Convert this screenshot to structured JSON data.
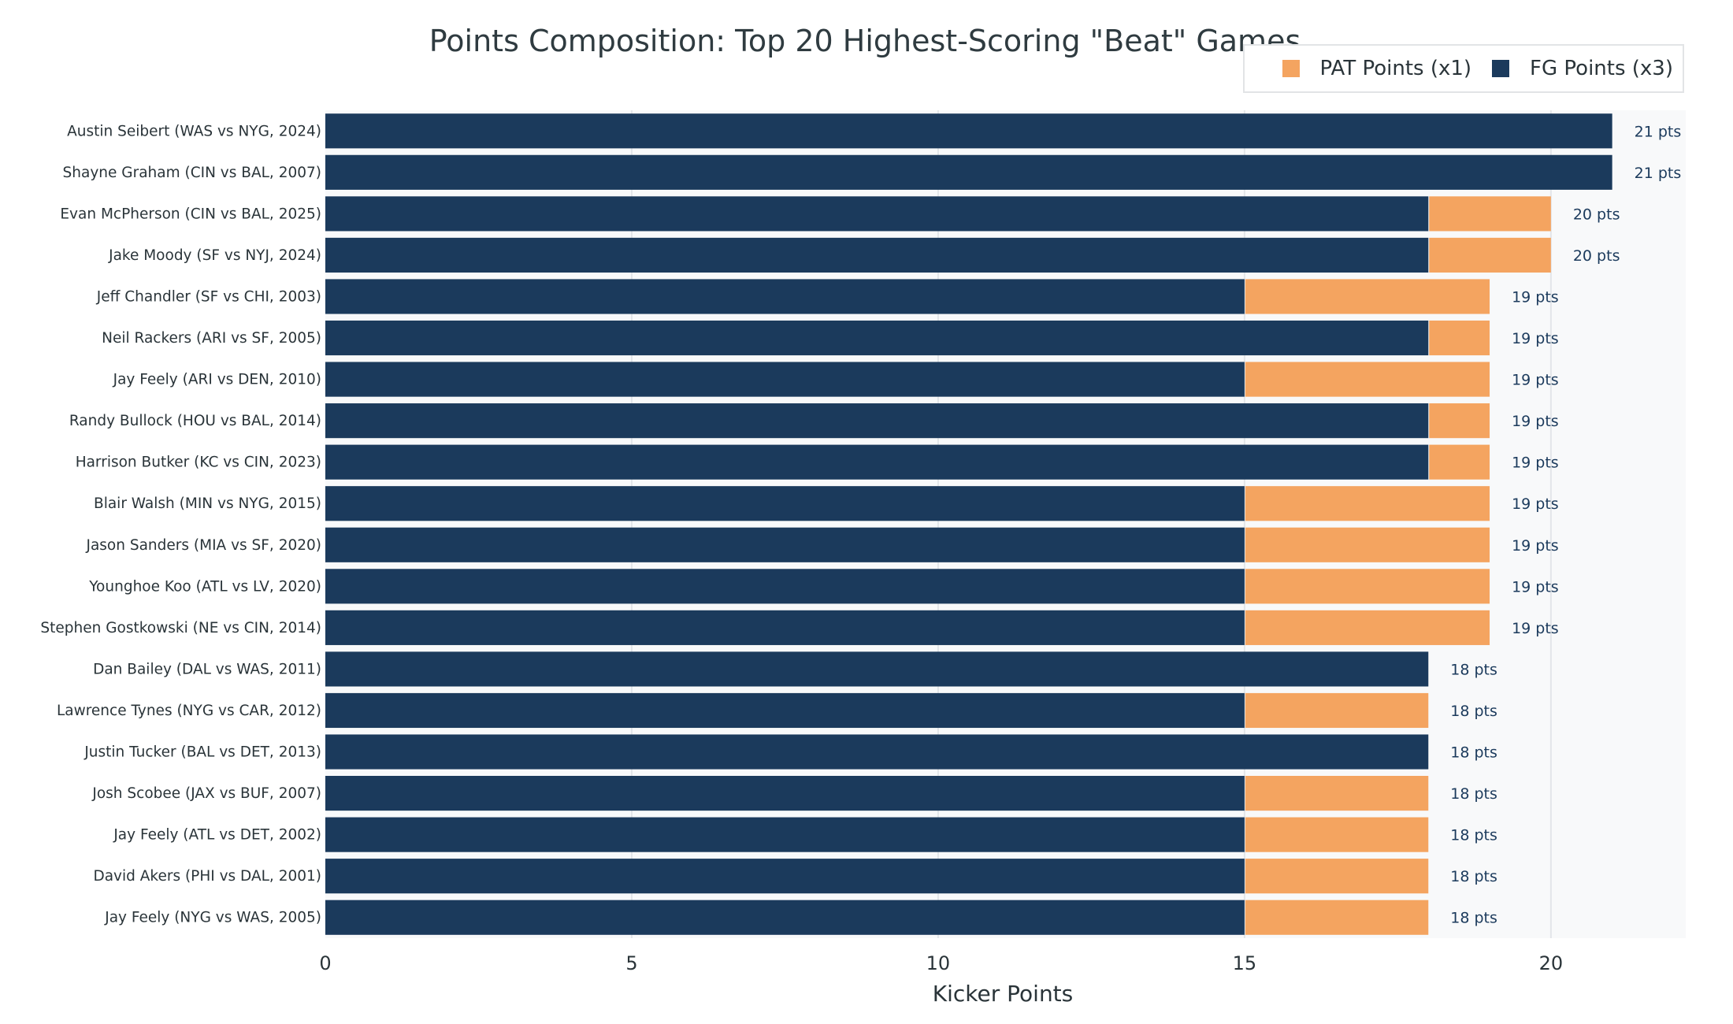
{
  "chart_data": {
    "type": "bar",
    "orientation": "horizontal",
    "stacked": true,
    "title": "Points Composition: Top 20 Highest-Scoring \"Beat\" Games",
    "xlabel": "Kicker Points",
    "ylabel": "",
    "xlim": [
      0,
      22.2
    ],
    "xticks": [
      0,
      5,
      10,
      15,
      20
    ],
    "grid": true,
    "legend_placement": "top-right",
    "categories": [
      "Austin Seibert (WAS vs NYG, 2024)",
      "Shayne Graham (CIN vs BAL, 2007)",
      "Evan McPherson (CIN vs BAL, 2025)",
      "Jake Moody (SF vs NYJ, 2024)",
      "Jeff Chandler (SF vs CHI, 2003)",
      "Neil Rackers (ARI vs SF, 2005)",
      "Jay Feely (ARI vs DEN, 2010)",
      "Randy Bullock (HOU vs BAL, 2014)",
      "Harrison Butker (KC vs CIN, 2023)",
      "Blair Walsh (MIN vs NYG, 2015)",
      "Jason Sanders (MIA vs SF, 2020)",
      "Younghoe Koo (ATL vs LV, 2020)",
      "Stephen Gostkowski (NE vs CIN, 2014)",
      "Dan Bailey (DAL vs WAS, 2011)",
      "Lawrence Tynes (NYG vs CAR, 2012)",
      "Justin Tucker (BAL vs DET, 2013)",
      "Josh Scobee (JAX vs BUF, 2007)",
      "Jay Feely (ATL vs DET, 2002)",
      "David Akers (PHI vs DAL, 2001)",
      "Jay Feely (NYG vs WAS, 2005)"
    ],
    "series": [
      {
        "name": "FG Points (x3)",
        "color": "#1b3a5c",
        "values": [
          21,
          21,
          18,
          18,
          15,
          18,
          15,
          18,
          18,
          15,
          15,
          15,
          15,
          18,
          15,
          18,
          15,
          15,
          15,
          15
        ]
      },
      {
        "name": "PAT Points (x1)",
        "color": "#f4a460",
        "values": [
          0,
          0,
          2,
          2,
          4,
          1,
          4,
          1,
          1,
          4,
          4,
          4,
          4,
          0,
          3,
          0,
          3,
          3,
          3,
          3
        ]
      }
    ],
    "data_labels": [
      "21 pts",
      "21 pts",
      "20 pts",
      "20 pts",
      "19 pts",
      "19 pts",
      "19 pts",
      "19 pts",
      "19 pts",
      "19 pts",
      "19 pts",
      "19 pts",
      "19 pts",
      "18 pts",
      "18 pts",
      "18 pts",
      "18 pts",
      "18 pts",
      "18 pts",
      "18 pts"
    ],
    "legend_order": [
      "PAT Points (x1)",
      "FG Points (x3)"
    ]
  },
  "colors": {
    "plot_background": "#f8f9fa",
    "grid": "#e3e6e9"
  }
}
